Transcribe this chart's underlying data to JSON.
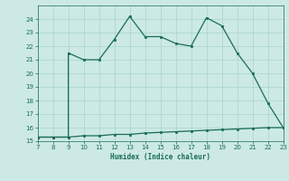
{
  "x_upper": [
    7,
    8,
    9,
    9,
    10,
    11,
    12,
    13,
    14,
    15,
    16,
    17,
    18,
    19,
    20,
    21,
    22,
    23
  ],
  "y_upper": [
    15.3,
    15.3,
    15.3,
    21.5,
    21.0,
    21.0,
    22.5,
    24.2,
    22.7,
    22.7,
    22.2,
    22.0,
    24.1,
    23.5,
    21.5,
    20.0,
    17.8,
    16.0
  ],
  "x_lower": [
    7,
    8,
    9,
    10,
    11,
    12,
    13,
    14,
    15,
    16,
    17,
    18,
    19,
    20,
    21,
    22,
    23
  ],
  "y_lower": [
    15.3,
    15.3,
    15.3,
    15.4,
    15.4,
    15.5,
    15.5,
    15.6,
    15.65,
    15.7,
    15.75,
    15.8,
    15.85,
    15.9,
    15.95,
    16.0,
    16.0
  ],
  "xlabel": "Humidex (Indice chaleur)",
  "xlim": [
    7,
    23
  ],
  "ylim": [
    15,
    25
  ],
  "yticks": [
    15,
    16,
    17,
    18,
    19,
    20,
    21,
    22,
    23,
    24
  ],
  "xticks": [
    7,
    8,
    9,
    10,
    11,
    12,
    13,
    14,
    15,
    16,
    17,
    18,
    19,
    20,
    21,
    22,
    23
  ],
  "line_color": "#1a6b5a",
  "bg_color": "#cce9e5",
  "grid_color": "#a8d4cf"
}
